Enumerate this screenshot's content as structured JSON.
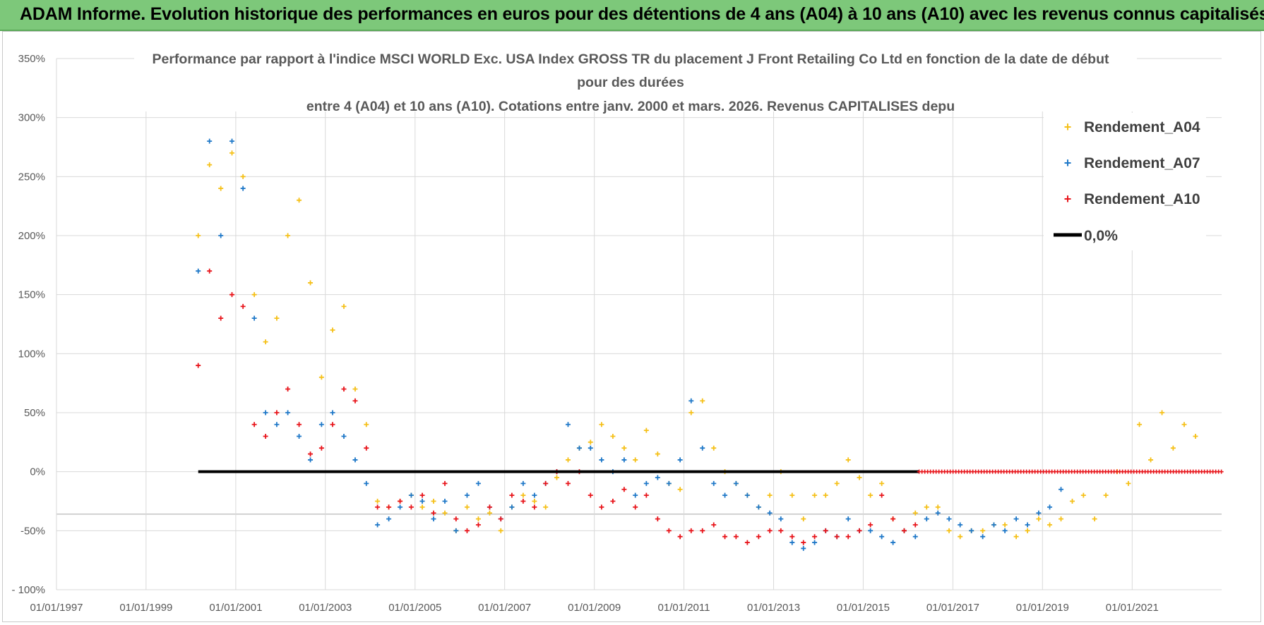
{
  "header": {
    "banner_title": "ADAM Informe. Evolution historique des performances en euros pour des détentions de 4 ans (A04) à 10 ans (A10) avec les revenus connus capitalisés"
  },
  "colors": {
    "banner_bg": "#7dc87a",
    "A04": "#f5c018",
    "A07": "#1f78c8",
    "A10": "#e8151b",
    "zero_line": "#000000",
    "grid": "#d9d9d9"
  },
  "chart_data": {
    "type": "scatter",
    "title_lines": [
      "Performance par rapport à l'indice MSCI WORLD Exc. USA Index GROSS TR  du placement J Front Retailing Co Ltd en fonction de la date de début",
      "pour des durées",
      "entre 4 (A04) et 10 ans (A10). Cotations entre janv. 2000 et mars. 2026. Revenus CAPITALISES depu"
    ],
    "x_axis": {
      "type": "date",
      "range": [
        "1997-01-01",
        "2022-12-31"
      ],
      "ticks": [
        "01/01/1997",
        "01/01/1999",
        "01/01/2001",
        "01/01/2003",
        "01/01/2005",
        "01/01/2007",
        "01/01/2009",
        "01/01/2011",
        "01/01/2013",
        "01/01/2015",
        "01/01/2017",
        "01/01/2019",
        "01/01/2021"
      ]
    },
    "y_axis": {
      "range": [
        -100,
        350
      ],
      "unit": "%",
      "ticks": [
        "350%",
        "300%",
        "250%",
        "200%",
        "150%",
        "100%",
        "50%",
        "0%",
        "-50%",
        "- 100%"
      ],
      "tick_values": [
        350,
        300,
        250,
        200,
        150,
        100,
        50,
        0,
        -50,
        -100
      ]
    },
    "grid": true,
    "legend": {
      "placement": "top-right",
      "entries": [
        "Rendement_A04",
        "Rendement_A07",
        "Rendement_A10",
        "0,0%"
      ]
    },
    "series": [
      {
        "name": "Rendement_A04",
        "marker": "plus",
        "x": [
          "2000-03-01",
          "2000-06-01",
          "2000-09-01",
          "2000-12-01",
          "2001-03-01",
          "2001-06-01",
          "2001-09-01",
          "2001-12-01",
          "2002-03-01",
          "2002-06-01",
          "2002-09-01",
          "2002-12-01",
          "2003-03-01",
          "2003-06-01",
          "2003-09-01",
          "2003-12-01",
          "2004-03-01",
          "2004-06-01",
          "2004-09-01",
          "2004-12-01",
          "2005-03-01",
          "2005-06-01",
          "2005-09-01",
          "2005-12-01",
          "2006-03-01",
          "2006-06-01",
          "2006-09-01",
          "2006-12-01",
          "2007-03-01",
          "2007-06-01",
          "2007-09-01",
          "2007-12-01",
          "2008-03-01",
          "2008-06-01",
          "2008-09-01",
          "2008-12-01",
          "2009-03-01",
          "2009-06-01",
          "2009-09-01",
          "2009-12-01",
          "2010-03-01",
          "2010-06-01",
          "2010-09-01",
          "2010-12-01",
          "2011-03-01",
          "2011-06-01",
          "2011-09-01",
          "2011-12-01",
          "2012-03-01",
          "2012-06-01",
          "2012-09-01",
          "2012-12-01",
          "2013-03-01",
          "2013-06-01",
          "2013-09-01",
          "2013-12-01",
          "2014-03-01",
          "2014-06-01",
          "2014-09-01",
          "2014-12-01",
          "2015-03-01",
          "2015-06-01",
          "2015-09-01",
          "2015-12-01",
          "2016-03-01",
          "2016-06-01",
          "2016-09-01",
          "2016-12-01",
          "2017-03-01",
          "2017-06-01",
          "2017-09-01",
          "2017-12-01",
          "2018-03-01",
          "2018-06-01",
          "2018-09-01",
          "2018-12-01",
          "2019-03-01",
          "2019-06-01",
          "2019-09-01",
          "2019-12-01",
          "2020-03-01",
          "2020-06-01",
          "2020-09-01",
          "2020-12-01",
          "2021-03-01",
          "2021-06-01",
          "2021-09-01",
          "2021-12-01",
          "2022-03-01",
          "2022-06-01"
        ],
        "y": [
          200,
          260,
          240,
          270,
          250,
          150,
          110,
          130,
          200,
          230,
          160,
          80,
          120,
          140,
          70,
          40,
          -25,
          -30,
          -25,
          -20,
          -30,
          -25,
          -35,
          -50,
          -30,
          -40,
          -35,
          -50,
          -30,
          -20,
          -25,
          -30,
          -5,
          10,
          20,
          25,
          40,
          30,
          20,
          10,
          35,
          15,
          -10,
          -15,
          50,
          60,
          20,
          0,
          -10,
          -20,
          -30,
          -20,
          0,
          -20,
          -40,
          -20,
          -20,
          -10,
          10,
          -5,
          -20,
          -10,
          -40,
          -50,
          -35,
          -30,
          -30,
          -50,
          -55,
          -50,
          -50,
          -45,
          -45,
          -55,
          -50,
          -40,
          -45,
          -40,
          -25,
          -20,
          -40,
          -20,
          0,
          -10,
          40,
          10,
          50,
          20,
          40,
          30
        ]
      },
      {
        "name": "Rendement_A07",
        "marker": "plus",
        "x": [
          "2000-03-01",
          "2000-06-01",
          "2000-09-01",
          "2000-12-01",
          "2001-03-01",
          "2001-06-01",
          "2001-09-01",
          "2001-12-01",
          "2002-03-01",
          "2002-06-01",
          "2002-09-01",
          "2002-12-01",
          "2003-03-01",
          "2003-06-01",
          "2003-09-01",
          "2003-12-01",
          "2004-03-01",
          "2004-06-01",
          "2004-09-01",
          "2004-12-01",
          "2005-03-01",
          "2005-06-01",
          "2005-09-01",
          "2005-12-01",
          "2006-03-01",
          "2006-06-01",
          "2006-09-01",
          "2006-12-01",
          "2007-03-01",
          "2007-06-01",
          "2007-09-01",
          "2007-12-01",
          "2008-03-01",
          "2008-06-01",
          "2008-09-01",
          "2008-12-01",
          "2009-03-01",
          "2009-06-01",
          "2009-09-01",
          "2009-12-01",
          "2010-03-01",
          "2010-06-01",
          "2010-09-01",
          "2010-12-01",
          "2011-03-01",
          "2011-06-01",
          "2011-09-01",
          "2011-12-01",
          "2012-03-01",
          "2012-06-01",
          "2012-09-01",
          "2012-12-01",
          "2013-03-01",
          "2013-06-01",
          "2013-09-01",
          "2013-12-01",
          "2014-03-01",
          "2014-06-01",
          "2014-09-01",
          "2014-12-01",
          "2015-03-01",
          "2015-06-01",
          "2015-09-01",
          "2015-12-01",
          "2016-03-01",
          "2016-06-01",
          "2016-09-01",
          "2016-12-01",
          "2017-03-01",
          "2017-06-01",
          "2017-09-01",
          "2017-12-01",
          "2018-03-01",
          "2018-06-01",
          "2018-09-01",
          "2018-12-01",
          "2019-03-01",
          "2019-06-01"
        ],
        "y": [
          170,
          280,
          200,
          280,
          240,
          130,
          50,
          40,
          50,
          30,
          10,
          40,
          50,
          30,
          10,
          -10,
          -45,
          -40,
          -30,
          -20,
          -25,
          -40,
          -25,
          -50,
          -20,
          -10,
          -30,
          -40,
          -30,
          -10,
          -20,
          -10,
          0,
          40,
          20,
          20,
          10,
          0,
          10,
          -20,
          -10,
          -5,
          -10,
          10,
          60,
          20,
          -10,
          -20,
          -10,
          -20,
          -30,
          -35,
          -40,
          -60,
          -65,
          -60,
          -50,
          -55,
          -40,
          -50,
          -50,
          -55,
          -60,
          -50,
          -55,
          -40,
          -35,
          -40,
          -45,
          -50,
          -55,
          -45,
          -50,
          -40,
          -45,
          -35,
          -30,
          -15
        ]
      },
      {
        "name": "Rendement_A10",
        "marker": "plus",
        "x": [
          "2000-03-01",
          "2000-06-01",
          "2000-09-01",
          "2000-12-01",
          "2001-03-01",
          "2001-06-01",
          "2001-09-01",
          "2001-12-01",
          "2002-03-01",
          "2002-06-01",
          "2002-09-01",
          "2002-12-01",
          "2003-03-01",
          "2003-06-01",
          "2003-09-01",
          "2003-12-01",
          "2004-03-01",
          "2004-06-01",
          "2004-09-01",
          "2004-12-01",
          "2005-03-01",
          "2005-06-01",
          "2005-09-01",
          "2005-12-01",
          "2006-03-01",
          "2006-06-01",
          "2006-09-01",
          "2006-12-01",
          "2007-03-01",
          "2007-06-01",
          "2007-09-01",
          "2007-12-01",
          "2008-03-01",
          "2008-06-01",
          "2008-09-01",
          "2008-12-01",
          "2009-03-01",
          "2009-06-01",
          "2009-09-01",
          "2009-12-01",
          "2010-03-01",
          "2010-06-01",
          "2010-09-01",
          "2010-12-01",
          "2011-03-01",
          "2011-06-01",
          "2011-09-01",
          "2011-12-01",
          "2012-03-01",
          "2012-06-01",
          "2012-09-01",
          "2012-12-01",
          "2013-03-01",
          "2013-06-01",
          "2013-09-01",
          "2013-12-01",
          "2014-03-01",
          "2014-06-01",
          "2014-09-01",
          "2014-12-01",
          "2015-03-01",
          "2015-06-01",
          "2015-09-01",
          "2015-12-01",
          "2016-03-01"
        ],
        "y": [
          90,
          170,
          130,
          150,
          140,
          40,
          30,
          50,
          70,
          40,
          15,
          20,
          40,
          70,
          60,
          20,
          -30,
          -30,
          -25,
          -30,
          -20,
          -35,
          -10,
          -40,
          -50,
          -45,
          -30,
          -40,
          -20,
          -25,
          -30,
          -10,
          0,
          -10,
          0,
          -20,
          -30,
          -25,
          -15,
          -30,
          -20,
          -40,
          -50,
          -55,
          -50,
          -50,
          -45,
          -55,
          -55,
          -60,
          -55,
          -50,
          -50,
          -55,
          -60,
          -55,
          -50,
          -55,
          -55,
          -50,
          -45,
          -20,
          -40,
          -50,
          -45
        ]
      },
      {
        "name": "0,0%",
        "style": "line",
        "x": [
          "2000-03-01",
          "2016-03-31"
        ],
        "y": [
          0,
          0
        ]
      },
      {
        "style": "dense-markers",
        "x": [
          "2016-04-01",
          "2022-12-31"
        ],
        "y": [
          0,
          0
        ]
      }
    ]
  }
}
